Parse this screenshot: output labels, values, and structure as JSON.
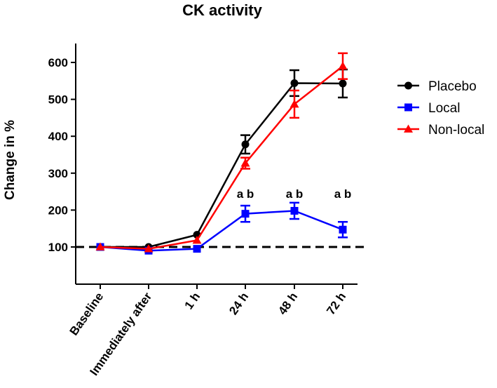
{
  "chart_data": {
    "type": "line",
    "title": "CK activity",
    "xlabel": "",
    "ylabel": "Change in %",
    "ylim": [
      0,
      650
    ],
    "yticks": [
      100,
      200,
      300,
      400,
      500,
      600
    ],
    "categories": [
      "Baseline",
      "Immediately after",
      "1 h",
      "24 h",
      "48 h",
      "72 h"
    ],
    "reference_line": {
      "y": 100,
      "style": "dashed",
      "color": "#000000"
    },
    "legend_position": "right",
    "series": [
      {
        "name": "Placebo",
        "color": "#000000",
        "marker": "circle",
        "values": [
          100,
          100,
          133,
          378,
          544,
          543
        ],
        "errors": [
          0,
          0,
          0,
          25,
          35,
          38
        ]
      },
      {
        "name": "Local",
        "color": "#0000ff",
        "marker": "square",
        "values": [
          100,
          90,
          95,
          190,
          198,
          147
        ],
        "errors": [
          0,
          0,
          0,
          22,
          22,
          21
        ]
      },
      {
        "name": "Non-local",
        "color": "#ff0000",
        "marker": "triangle",
        "values": [
          100,
          95,
          118,
          327,
          487,
          590
        ],
        "errors": [
          0,
          0,
          0,
          15,
          37,
          35
        ]
      }
    ],
    "annotations": [
      {
        "category": "24 h",
        "text": "a b"
      },
      {
        "category": "48 h",
        "text": "a b"
      },
      {
        "category": "72 h",
        "text": "a b"
      }
    ]
  }
}
